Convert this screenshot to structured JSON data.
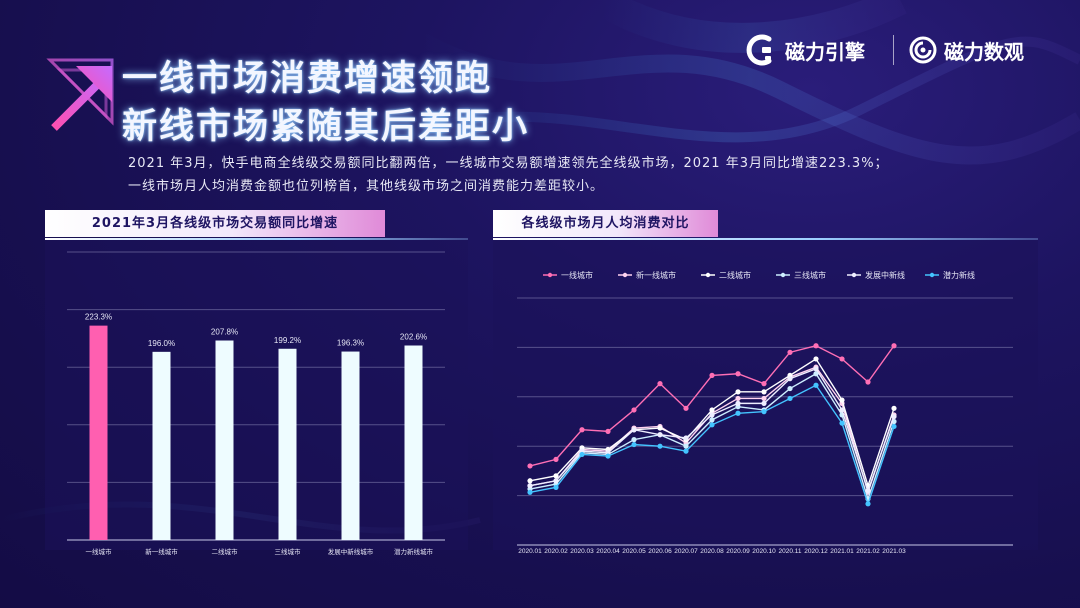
{
  "header": {
    "title_line1": "一线市场消费增速领跑",
    "title_line2": "新线市场紧随其后差距小",
    "description_line1": "2021 年3月，快手电商全线级交易额同比翻两倍，一线城市交易额增速领先全线级市场，2021 年3月同比增速223.3%；",
    "description_line2": "一线市场月人均消费金额也位列榜首，其他线级市场之间消费能力差距较小。"
  },
  "brands": {
    "brand1": "磁力引擎",
    "brand2": "磁力数观"
  },
  "colors": {
    "highlight_bar": "#ff5fb0",
    "bar": "#eefcff",
    "series": [
      "#ff6fb5",
      "#ffd3ef",
      "#ffffff",
      "#cdeeff",
      "#eeeeff",
      "#44c4ff"
    ]
  },
  "chart_data": [
    {
      "type": "bar",
      "title": "2021年3月各线级市场交易额同比增速",
      "categories": [
        "一线城市",
        "新一线城市",
        "二线城市",
        "三线城市",
        "发展中新线城市",
        "潜力新线城市"
      ],
      "values": [
        223.3,
        196.0,
        207.8,
        199.2,
        196.3,
        202.6
      ],
      "data_labels": [
        "223.3%",
        "196.0%",
        "207.8%",
        "199.2%",
        "196.3%",
        "202.6%"
      ],
      "ylim": [
        0,
        300
      ],
      "grid": true,
      "xlabel": "",
      "ylabel": ""
    },
    {
      "type": "line",
      "title": "各线级市场月人均消费对比",
      "x": [
        "2020.01",
        "2020.02",
        "2020.03",
        "2020.04",
        "2020.05",
        "2020.06",
        "2020.07",
        "2020.08",
        "2020.09",
        "2020.10",
        "2020.11",
        "2020.12",
        "2021.01",
        "2021.02",
        "2021.03"
      ],
      "series": [
        {
          "name": "一线城市",
          "values": [
            48,
            52,
            70,
            69,
            82,
            98,
            83,
            103,
            104,
            98,
            117,
            121,
            113,
            99,
            121
          ]
        },
        {
          "name": "新一线城市",
          "values": [
            36,
            39,
            58,
            57,
            71,
            72,
            62,
            80,
            89,
            89,
            102,
            108,
            86,
            32,
            79
          ]
        },
        {
          "name": "二线城市",
          "values": [
            39,
            42,
            59,
            58,
            70,
            71,
            64,
            82,
            93,
            93,
            103,
            113,
            88,
            36,
            83
          ]
        },
        {
          "name": "三线城市",
          "values": [
            34,
            37,
            56,
            55,
            64,
            67,
            60,
            76,
            84,
            82,
            95,
            104,
            79,
            28,
            75
          ]
        },
        {
          "name": "发展中新线",
          "values": [
            36,
            39,
            57,
            56,
            70,
            67,
            65,
            79,
            86,
            86,
            101,
            107,
            82,
            33,
            78
          ]
        },
        {
          "name": "潜力新线",
          "values": [
            32,
            35,
            55,
            54,
            61,
            60,
            57,
            73,
            80,
            81,
            89,
            97,
            74,
            25,
            72
          ]
        }
      ],
      "ylim": [
        0,
        150
      ],
      "grid": true,
      "legend": "top",
      "xlabel": "",
      "ylabel": ""
    }
  ]
}
